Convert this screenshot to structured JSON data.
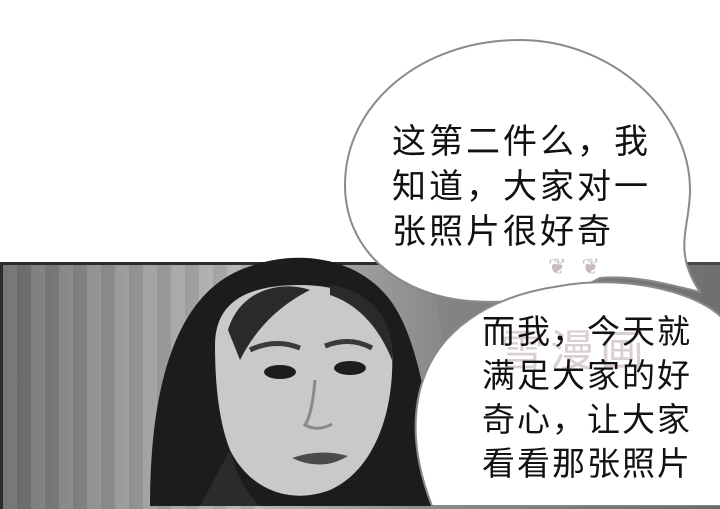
{
  "speech_bubbles": [
    {
      "lines": [
        "这第二件么，我",
        "知道，大家对一",
        "张照片很好奇"
      ]
    },
    {
      "lines": [
        "而我，今天就",
        "满足大家的好",
        "奇心，让大家",
        "看看那张照片"
      ]
    }
  ],
  "watermark": {
    "text": "雪漫画"
  },
  "ornament": {
    "glyphs": "❦ ❦"
  },
  "colors": {
    "bubble_fill": "#ffffff",
    "bubble_stroke": "#8a8a8a",
    "text": "#111111",
    "panel_border": "#2b2b2b"
  }
}
